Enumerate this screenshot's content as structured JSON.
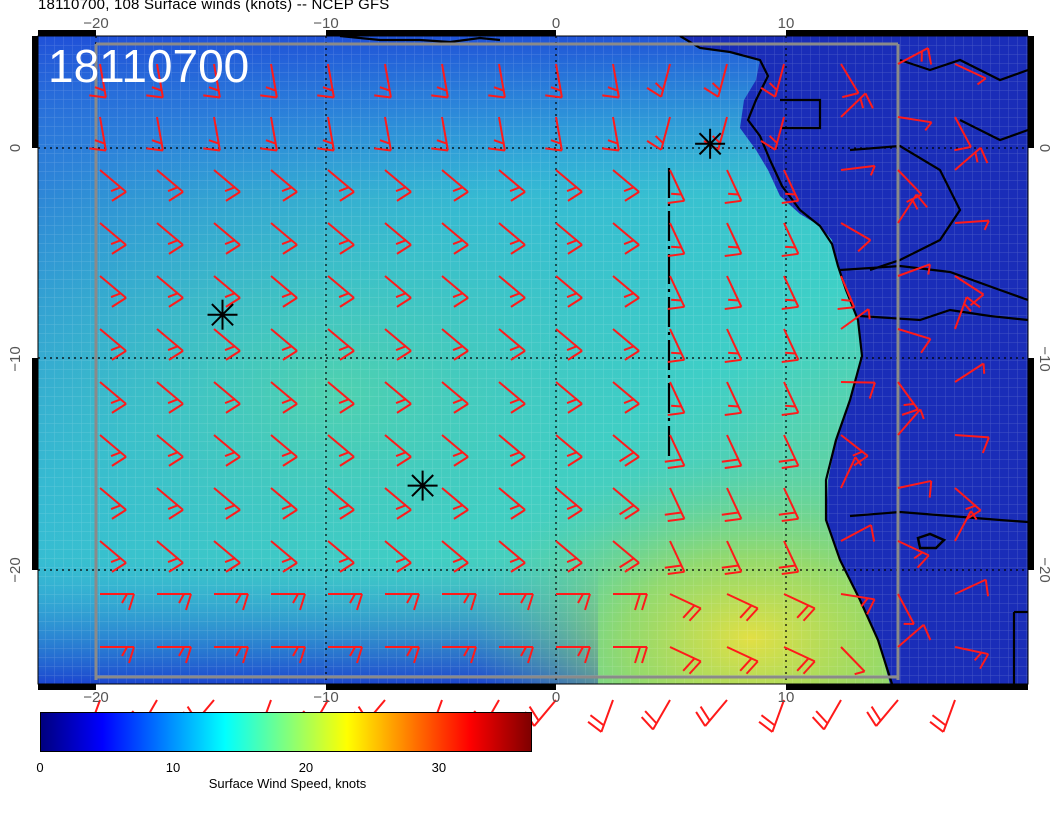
{
  "title": "18110700, 108 Surface winds (knots) -- NCEP GFS",
  "map_label": "18110700",
  "colorbar": {
    "label": "Surface Wind Speed, knots",
    "ticks": [
      "0",
      "10",
      "20",
      "30"
    ],
    "tick_values": [
      0,
      10,
      20,
      30
    ],
    "range": [
      0,
      37
    ],
    "colors": [
      "#00007f",
      "#0000ff",
      "#007fff",
      "#00ffff",
      "#7fff7f",
      "#ffff00",
      "#ff7f00",
      "#ff0000",
      "#7f0000"
    ]
  },
  "axes": {
    "lon_ticks": [
      "−20",
      "−10",
      "0",
      "10"
    ],
    "lat_ticks": [
      "0",
      "−10",
      "−20"
    ],
    "lon_values": [
      -20,
      -10,
      0,
      10
    ],
    "lat_values": [
      0,
      -10,
      -20
    ],
    "lon_range": [
      -22.5,
      20.5
    ],
    "lat_range": [
      5,
      -25.5
    ]
  },
  "colors": {
    "barb": "#ff1a1a",
    "land_outline": "#000000",
    "grid": "#000000"
  },
  "storm_markers": [
    {
      "lon": 6.7,
      "lat": 0.2
    },
    {
      "lon": -14.5,
      "lat": -7.9
    },
    {
      "lon": -5.8,
      "lat": -16.0
    }
  ],
  "wind_field_note_free": true
}
